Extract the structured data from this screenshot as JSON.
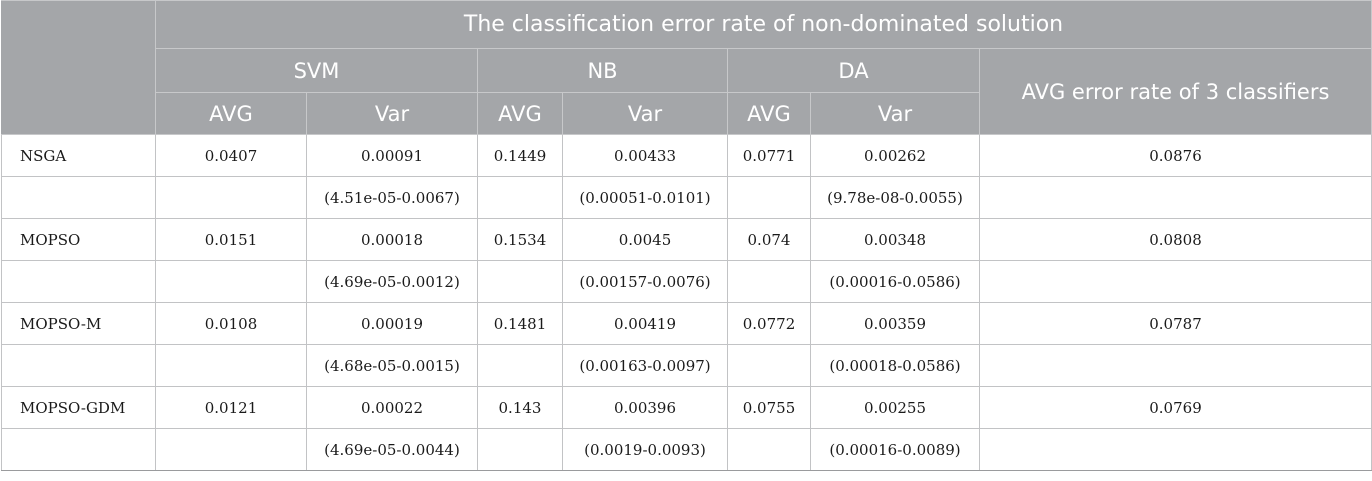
{
  "header": {
    "group_title": "The classification error rate of non-dominated solution",
    "classifiers": [
      "SVM",
      "NB",
      "DA"
    ],
    "avg_all_label": "AVG error rate of 3 classifiers",
    "sub_avg": "AVG",
    "sub_var": "Var"
  },
  "rows": [
    {
      "method": "NSGA",
      "svm_avg": "0.0407",
      "svm_var": "0.00091",
      "svm_range": "(4.51e-05-0.0067)",
      "nb_avg": "0.1449",
      "nb_var": "0.00433",
      "nb_range": "(0.00051-0.0101)",
      "da_avg": "0.0771",
      "da_var": "0.00262",
      "da_range": "(9.78e-08-0.0055)",
      "avg_all": "0.0876"
    },
    {
      "method": "MOPSO",
      "svm_avg": "0.0151",
      "svm_var": "0.00018",
      "svm_range": "(4.69e-05-0.0012)",
      "nb_avg": "0.1534",
      "nb_var": "0.0045",
      "nb_range": "(0.00157-0.0076)",
      "da_avg": "0.074",
      "da_var": "0.00348",
      "da_range": "(0.00016-0.0586)",
      "avg_all": "0.0808"
    },
    {
      "method": "MOPSO-M",
      "svm_avg": "0.0108",
      "svm_var": "0.00019",
      "svm_range": "(4.68e-05-0.0015)",
      "nb_avg": "0.1481",
      "nb_var": "0.00419",
      "nb_range": "(0.00163-0.0097)",
      "da_avg": "0.0772",
      "da_var": "0.00359",
      "da_range": "(0.00018-0.0586)",
      "avg_all": "0.0787"
    },
    {
      "method": "MOPSO-GDM",
      "svm_avg": "0.0121",
      "svm_var": "0.00022",
      "svm_range": "(4.69e-05-0.0044)",
      "nb_avg": "0.143",
      "nb_var": "0.00396",
      "nb_range": "(0.0019-0.0093)",
      "da_avg": "0.0755",
      "da_var": "0.00255",
      "da_range": "(0.00016-0.0089)",
      "avg_all": "0.0769"
    }
  ]
}
